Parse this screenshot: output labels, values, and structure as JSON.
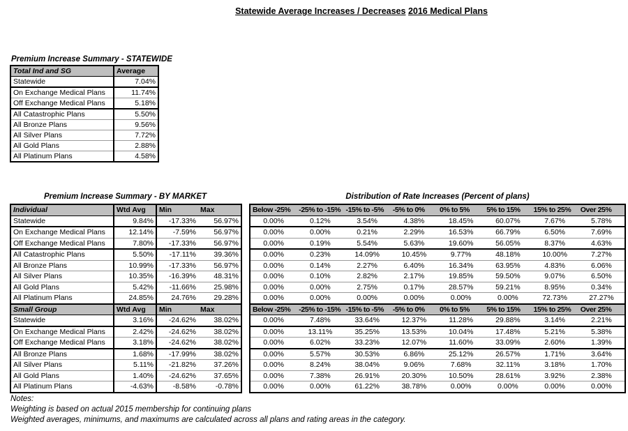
{
  "page_title": {
    "line1": "Statewide Average Increases / Decreases",
    "line2": "2016 Medical Plans"
  },
  "colors": {
    "header_bg": "#bfbfbf",
    "thin_border": "#9b9b9b",
    "thick_border": "#000000"
  },
  "statewide_table": {
    "title": "Premium Increase Summary - STATEWIDE",
    "header": {
      "label": "Total Ind and SG",
      "value": "Average"
    },
    "groups": [
      {
        "rows": [
          {
            "label": "Statewide",
            "value": "7.04%"
          }
        ]
      },
      {
        "rows": [
          {
            "label": "On Exchange Medical Plans",
            "value": "11.74%"
          },
          {
            "label": "Off Exchange Medical Plans",
            "value": "5.18%"
          }
        ]
      },
      {
        "rows": [
          {
            "label": "All Catastrophic Plans",
            "value": "5.50%"
          },
          {
            "label": "All Bronze Plans",
            "value": "9.56%"
          },
          {
            "label": "All Silver Plans",
            "value": "7.72%"
          },
          {
            "label": "All Gold Plans",
            "value": "2.88%"
          },
          {
            "label": "All Platinum Plans",
            "value": "4.58%"
          }
        ]
      }
    ]
  },
  "by_market_table": {
    "title": "Premium Increase Summary - BY MARKET",
    "columns": [
      "Wtd Avg",
      "Min",
      "Max"
    ],
    "sections": [
      {
        "name": "Individual",
        "groups": [
          {
            "rows": [
              {
                "label": "Statewide",
                "wtd_avg": "9.84%",
                "min": "-17.33%",
                "max": "56.97%"
              }
            ]
          },
          {
            "rows": [
              {
                "label": "On Exchange Medical Plans",
                "wtd_avg": "12.14%",
                "min": "-7.59%",
                "max": "56.97%"
              },
              {
                "label": "Off Exchange Medical Plans",
                "wtd_avg": "7.80%",
                "min": "-17.33%",
                "max": "56.97%"
              }
            ]
          },
          {
            "rows": [
              {
                "label": "All Catastrophic Plans",
                "wtd_avg": "5.50%",
                "min": "-17.11%",
                "max": "39.36%"
              },
              {
                "label": "All Bronze Plans",
                "wtd_avg": "10.99%",
                "min": "-17.33%",
                "max": "56.97%"
              },
              {
                "label": "All Silver Plans",
                "wtd_avg": "10.35%",
                "min": "-16.39%",
                "max": "48.31%"
              },
              {
                "label": "All Gold Plans",
                "wtd_avg": "5.42%",
                "min": "-11.66%",
                "max": "25.98%"
              },
              {
                "label": "All Platinum Plans",
                "wtd_avg": "24.85%",
                "min": "24.76%",
                "max": "29.28%"
              }
            ]
          }
        ]
      },
      {
        "name": "Small Group",
        "groups": [
          {
            "rows": [
              {
                "label": "Statewide",
                "wtd_avg": "3.16%",
                "min": "-24.62%",
                "max": "38.02%"
              }
            ]
          },
          {
            "rows": [
              {
                "label": "On Exchange Medical Plans",
                "wtd_avg": "2.42%",
                "min": "-24.62%",
                "max": "38.02%"
              },
              {
                "label": "Off Exchange Medical Plans",
                "wtd_avg": "3.18%",
                "min": "-24.62%",
                "max": "38.02%"
              }
            ]
          },
          {
            "rows": [
              {
                "label": "All Bronze Plans",
                "wtd_avg": "1.68%",
                "min": "-17.99%",
                "max": "38.02%"
              },
              {
                "label": "All Silver Plans",
                "wtd_avg": "5.11%",
                "min": "-21.82%",
                "max": "37.26%"
              },
              {
                "label": "All Gold Plans",
                "wtd_avg": "1.40%",
                "min": "-24.62%",
                "max": "37.65%"
              },
              {
                "label": "All Platinum Plans",
                "wtd_avg": "-4.63%",
                "min": "-8.58%",
                "max": "-0.78%"
              }
            ]
          }
        ]
      }
    ]
  },
  "distribution_table": {
    "title": "Distribution of Rate Increases (Percent of plans)",
    "columns": [
      "Below -25%",
      "-25% to -15%",
      "-15% to -5%",
      "-5% to 0%",
      "0% to 5%",
      "5% to 15%",
      "15% to 25%",
      "Over 25%"
    ],
    "sections": [
      {
        "groups": [
          {
            "rows": [
              {
                "values": [
                  "0.00%",
                  "0.12%",
                  "3.54%",
                  "4.38%",
                  "18.45%",
                  "60.07%",
                  "7.67%",
                  "5.78%"
                ]
              }
            ]
          },
          {
            "rows": [
              {
                "values": [
                  "0.00%",
                  "0.00%",
                  "0.21%",
                  "2.29%",
                  "16.53%",
                  "66.79%",
                  "6.50%",
                  "7.69%"
                ]
              },
              {
                "values": [
                  "0.00%",
                  "0.19%",
                  "5.54%",
                  "5.63%",
                  "19.60%",
                  "56.05%",
                  "8.37%",
                  "4.63%"
                ]
              }
            ]
          },
          {
            "rows": [
              {
                "values": [
                  "0.00%",
                  "0.23%",
                  "14.09%",
                  "10.45%",
                  "9.77%",
                  "48.18%",
                  "10.00%",
                  "7.27%"
                ]
              },
              {
                "values": [
                  "0.00%",
                  "0.14%",
                  "2.27%",
                  "6.40%",
                  "16.34%",
                  "63.95%",
                  "4.83%",
                  "6.06%"
                ]
              },
              {
                "values": [
                  "0.00%",
                  "0.10%",
                  "2.82%",
                  "2.17%",
                  "19.85%",
                  "59.50%",
                  "9.07%",
                  "6.50%"
                ]
              },
              {
                "values": [
                  "0.00%",
                  "0.00%",
                  "2.75%",
                  "0.17%",
                  "28.57%",
                  "59.21%",
                  "8.95%",
                  "0.34%"
                ]
              },
              {
                "values": [
                  "0.00%",
                  "0.00%",
                  "0.00%",
                  "0.00%",
                  "0.00%",
                  "0.00%",
                  "72.73%",
                  "27.27%"
                ]
              }
            ]
          }
        ]
      },
      {
        "groups": [
          {
            "rows": [
              {
                "values": [
                  "0.00%",
                  "7.48%",
                  "33.64%",
                  "12.37%",
                  "11.28%",
                  "29.88%",
                  "3.14%",
                  "2.21%"
                ]
              }
            ]
          },
          {
            "rows": [
              {
                "values": [
                  "0.00%",
                  "13.11%",
                  "35.25%",
                  "13.53%",
                  "10.04%",
                  "17.48%",
                  "5.21%",
                  "5.38%"
                ]
              },
              {
                "values": [
                  "0.00%",
                  "6.02%",
                  "33.23%",
                  "12.07%",
                  "11.60%",
                  "33.09%",
                  "2.60%",
                  "1.39%"
                ]
              }
            ]
          },
          {
            "rows": [
              {
                "values": [
                  "0.00%",
                  "5.57%",
                  "30.53%",
                  "6.86%",
                  "25.12%",
                  "26.57%",
                  "1.71%",
                  "3.64%"
                ]
              },
              {
                "values": [
                  "0.00%",
                  "8.24%",
                  "38.04%",
                  "9.06%",
                  "7.68%",
                  "32.11%",
                  "3.18%",
                  "1.70%"
                ]
              },
              {
                "values": [
                  "0.00%",
                  "7.38%",
                  "26.91%",
                  "20.30%",
                  "10.50%",
                  "28.61%",
                  "3.92%",
                  "2.38%"
                ]
              },
              {
                "values": [
                  "0.00%",
                  "0.00%",
                  "61.22%",
                  "38.78%",
                  "0.00%",
                  "0.00%",
                  "0.00%",
                  "0.00%"
                ]
              }
            ]
          }
        ]
      }
    ]
  },
  "notes": {
    "title": "Notes:",
    "lines": [
      "Weighting is based on actual 2015 membership for continuing plans",
      "Weighted averages, minimums, and maximums are calculated across all plans and rating areas in the category."
    ]
  }
}
